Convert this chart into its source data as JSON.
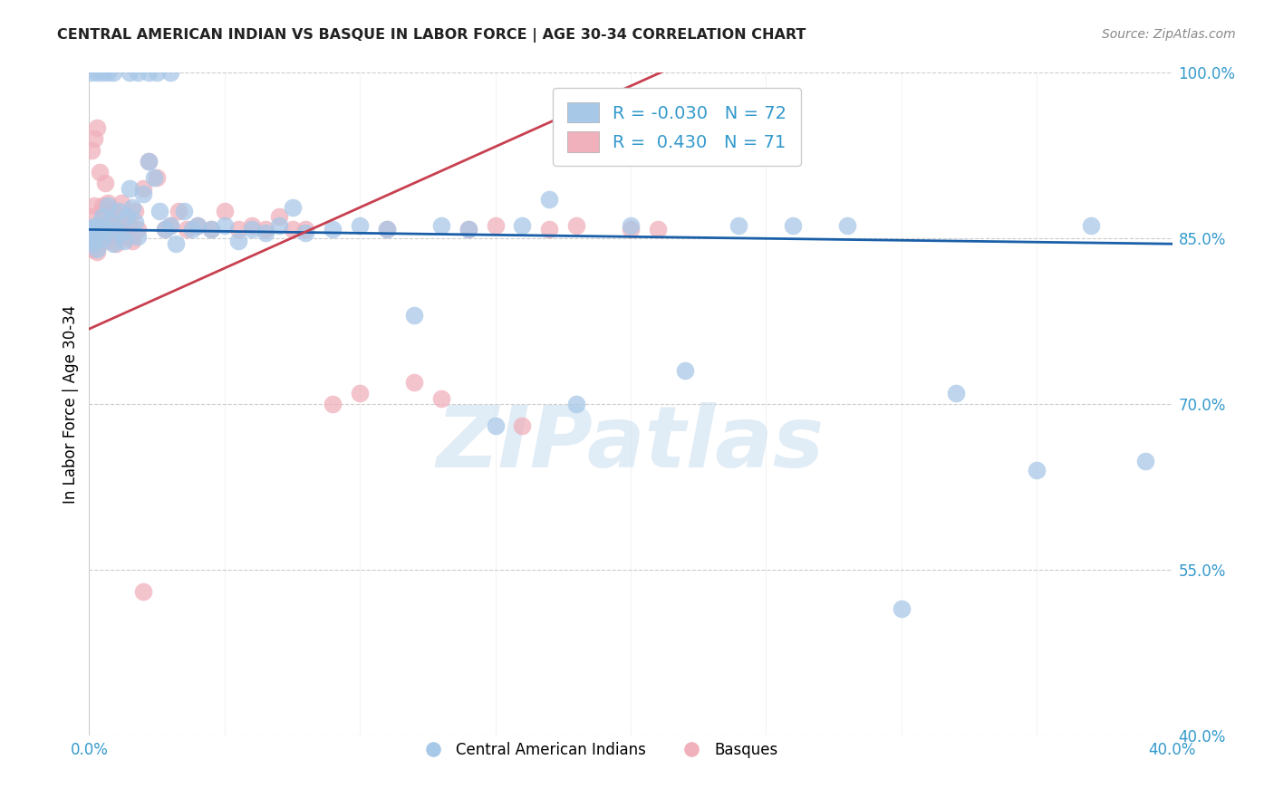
{
  "title": "CENTRAL AMERICAN INDIAN VS BASQUE IN LABOR FORCE | AGE 30-34 CORRELATION CHART",
  "source": "Source: ZipAtlas.com",
  "ylabel": "In Labor Force | Age 30-34",
  "xlim": [
    0.0,
    0.4
  ],
  "ylim": [
    0.4,
    1.0
  ],
  "xticks": [
    0.0,
    0.05,
    0.1,
    0.15,
    0.2,
    0.25,
    0.3,
    0.35,
    0.4
  ],
  "xticklabels": [
    "0.0%",
    "",
    "",
    "",
    "",
    "",
    "",
    "",
    "40.0%"
  ],
  "yticks": [
    0.4,
    0.55,
    0.7,
    0.85,
    1.0
  ],
  "yticklabels": [
    "40.0%",
    "55.0%",
    "70.0%",
    "85.0%",
    "100.0%"
  ],
  "R_blue": -0.03,
  "N_blue": 72,
  "R_pink": 0.43,
  "N_pink": 71,
  "blue_color": "#a8c8e8",
  "pink_color": "#f0b0bc",
  "blue_line_color": "#1a5fa8",
  "pink_line_color": "#c84050",
  "watermark_text": "ZIPatlas",
  "legend_label_blue": "Central American Indians",
  "legend_label_pink": "Basques",
  "blue_line_x0": 0.0,
  "blue_line_y0": 0.858,
  "blue_line_x1": 0.4,
  "blue_line_y1": 0.845,
  "pink_line_x0": 0.0,
  "pink_line_y0": 0.768,
  "pink_line_x1": 0.22,
  "pink_line_y1": 1.01,
  "blue_scatter_x": [
    0.0,
    0.0,
    0.001,
    0.001,
    0.002,
    0.002,
    0.003,
    0.003,
    0.004,
    0.005,
    0.005,
    0.006,
    0.007,
    0.008,
    0.009,
    0.01,
    0.011,
    0.012,
    0.013,
    0.014,
    0.015,
    0.016,
    0.017,
    0.018,
    0.02,
    0.022,
    0.024,
    0.026,
    0.028,
    0.03,
    0.032,
    0.035,
    0.038,
    0.04,
    0.045,
    0.05,
    0.055,
    0.06,
    0.065,
    0.07,
    0.075,
    0.08,
    0.09,
    0.1,
    0.11,
    0.12,
    0.13,
    0.14,
    0.15,
    0.16,
    0.17,
    0.18,
    0.2,
    0.22,
    0.24,
    0.26,
    0.28,
    0.3,
    0.32,
    0.35,
    0.37,
    0.39,
    0.001,
    0.003,
    0.005,
    0.007,
    0.009,
    0.015,
    0.018,
    0.022,
    0.025,
    0.03
  ],
  "blue_scatter_y": [
    0.858,
    0.855,
    0.86,
    0.85,
    0.858,
    0.845,
    0.862,
    0.84,
    0.855,
    0.85,
    0.87,
    0.858,
    0.88,
    0.865,
    0.845,
    0.858,
    0.875,
    0.855,
    0.848,
    0.87,
    0.895,
    0.878,
    0.865,
    0.852,
    0.89,
    0.92,
    0.905,
    0.875,
    0.858,
    0.862,
    0.845,
    0.875,
    0.858,
    0.862,
    0.858,
    0.862,
    0.848,
    0.858,
    0.855,
    0.862,
    0.878,
    0.855,
    0.858,
    0.862,
    0.858,
    0.78,
    0.862,
    0.858,
    0.68,
    0.862,
    0.885,
    0.7,
    0.862,
    0.73,
    0.862,
    0.862,
    0.862,
    0.515,
    0.71,
    0.64,
    0.862,
    0.648,
    1.0,
    1.0,
    1.0,
    1.0,
    1.0,
    1.0,
    1.0,
    1.0,
    1.0,
    1.0
  ],
  "pink_scatter_x": [
    0.0,
    0.0,
    0.001,
    0.001,
    0.001,
    0.002,
    0.002,
    0.002,
    0.003,
    0.003,
    0.003,
    0.004,
    0.004,
    0.005,
    0.005,
    0.006,
    0.006,
    0.007,
    0.007,
    0.008,
    0.008,
    0.009,
    0.009,
    0.01,
    0.01,
    0.011,
    0.012,
    0.013,
    0.014,
    0.015,
    0.016,
    0.017,
    0.018,
    0.02,
    0.022,
    0.025,
    0.028,
    0.03,
    0.033,
    0.036,
    0.04,
    0.045,
    0.05,
    0.055,
    0.06,
    0.065,
    0.07,
    0.075,
    0.08,
    0.09,
    0.1,
    0.11,
    0.12,
    0.13,
    0.14,
    0.15,
    0.16,
    0.17,
    0.18,
    0.2,
    0.21,
    0.001,
    0.002,
    0.003,
    0.004,
    0.005,
    0.006,
    0.007,
    0.01,
    0.015,
    0.02
  ],
  "pink_scatter_y": [
    0.858,
    0.85,
    0.86,
    0.84,
    0.87,
    0.858,
    0.88,
    0.845,
    0.862,
    0.852,
    0.838,
    0.862,
    0.848,
    0.875,
    0.855,
    0.862,
    0.848,
    0.882,
    0.858,
    0.87,
    0.858,
    0.875,
    0.862,
    0.858,
    0.845,
    0.862,
    0.882,
    0.858,
    0.87,
    0.862,
    0.848,
    0.875,
    0.858,
    0.895,
    0.92,
    0.905,
    0.858,
    0.862,
    0.875,
    0.858,
    0.862,
    0.858,
    0.875,
    0.858,
    0.862,
    0.858,
    0.87,
    0.858,
    0.858,
    0.7,
    0.71,
    0.858,
    0.72,
    0.705,
    0.858,
    0.862,
    0.68,
    0.858,
    0.862,
    0.858,
    0.858,
    0.93,
    0.94,
    0.95,
    0.91,
    0.88,
    0.9,
    0.86,
    0.852,
    0.852,
    0.53
  ]
}
